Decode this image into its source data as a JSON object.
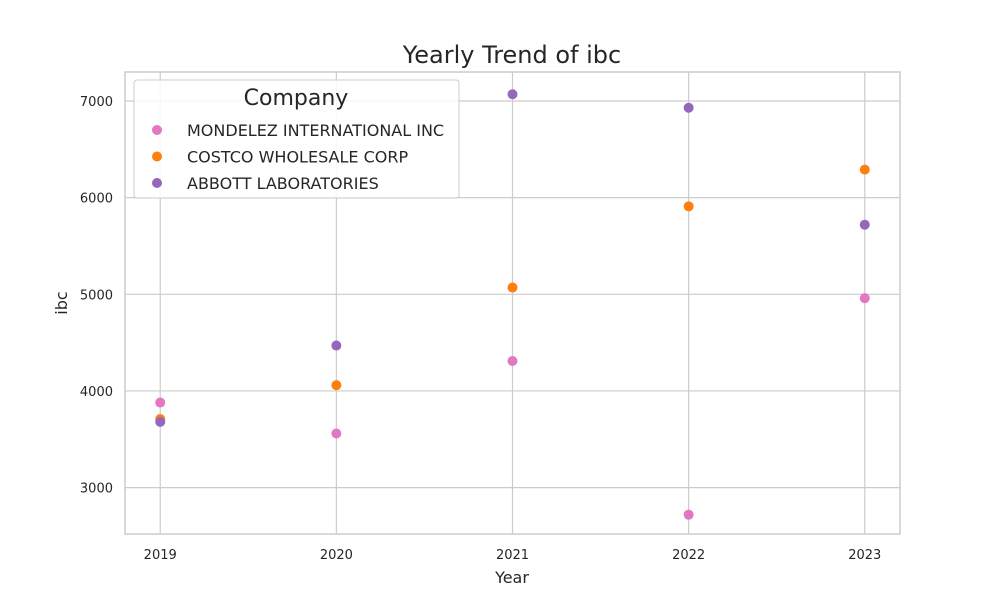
{
  "chart_data": {
    "type": "scatter",
    "title": "Yearly Trend of ibc",
    "xlabel": "Year",
    "ylabel": "ibc",
    "x": [
      2019,
      2020,
      2021,
      2022,
      2023
    ],
    "x_tick_labels": [
      "2019",
      "2020",
      "2021",
      "2022",
      "2023"
    ],
    "xlim": [
      2018.8,
      2023.2
    ],
    "y_ticks": [
      3000,
      4000,
      5000,
      6000,
      7000
    ],
    "y_tick_labels": [
      "3000",
      "4000",
      "5000",
      "6000",
      "7000"
    ],
    "ylim": [
      2520,
      7300
    ],
    "grid": true,
    "legend": {
      "title": "Company",
      "placement": "top-left"
    },
    "series": [
      {
        "name": "MONDELEZ INTERNATIONAL INC",
        "color": "#e377c2",
        "values": [
          3880,
          3560,
          4310,
          2720,
          4960
        ]
      },
      {
        "name": "COSTCO WHOLESALE CORP",
        "color": "#ff7f0e",
        "values": [
          3710,
          4060,
          5070,
          5910,
          6290
        ]
      },
      {
        "name": "ABBOTT LABORATORIES",
        "color": "#9467bd",
        "values": [
          3680,
          4470,
          7070,
          6930,
          5720
        ]
      }
    ]
  }
}
